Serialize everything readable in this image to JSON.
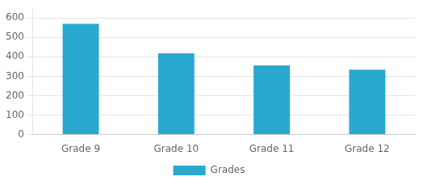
{
  "chart_data": {
    "type": "bar",
    "categories": [
      "Grade 9",
      "Grade 10",
      "Grade 11",
      "Grade 12"
    ],
    "series": [
      {
        "name": "Grades",
        "color": "#29a8d0",
        "values": [
          570,
          418,
          356,
          334
        ]
      }
    ],
    "ylim": [
      0,
      650
    ],
    "yticks": [
      0,
      100,
      200,
      300,
      400,
      500,
      600
    ],
    "grid": true,
    "legend": "bottom"
  }
}
